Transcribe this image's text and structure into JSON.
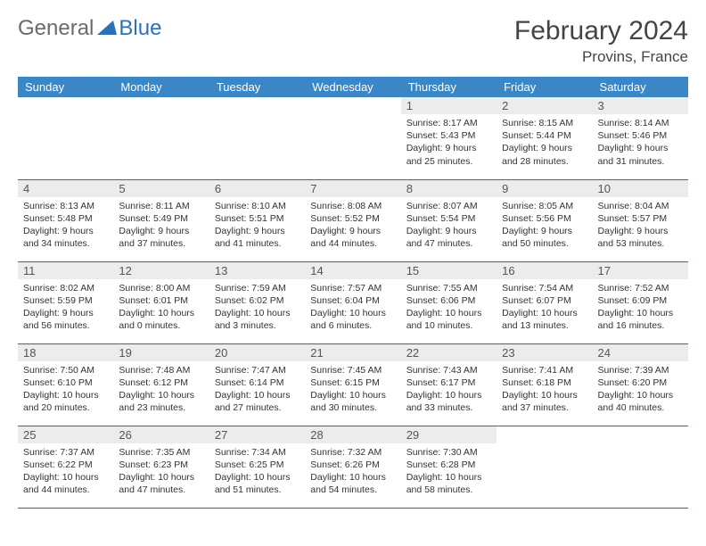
{
  "logo": {
    "text1": "General",
    "text2": "Blue"
  },
  "title": "February 2024",
  "location": "Provins, France",
  "colors": {
    "header_bg": "#3b86c5",
    "header_text": "#ffffff",
    "daynum_bg": "#ececec",
    "border": "#2a6aa8",
    "logo_gray": "#6a6a6a",
    "logo_blue": "#2a71b8"
  },
  "weekdays": [
    "Sunday",
    "Monday",
    "Tuesday",
    "Wednesday",
    "Thursday",
    "Friday",
    "Saturday"
  ],
  "weeks": [
    [
      {
        "n": "",
        "sr": "",
        "ss": "",
        "d1": "",
        "d2": "",
        "empty": true
      },
      {
        "n": "",
        "sr": "",
        "ss": "",
        "d1": "",
        "d2": "",
        "empty": true
      },
      {
        "n": "",
        "sr": "",
        "ss": "",
        "d1": "",
        "d2": "",
        "empty": true
      },
      {
        "n": "",
        "sr": "",
        "ss": "",
        "d1": "",
        "d2": "",
        "empty": true
      },
      {
        "n": "1",
        "sr": "Sunrise: 8:17 AM",
        "ss": "Sunset: 5:43 PM",
        "d1": "Daylight: 9 hours",
        "d2": "and 25 minutes."
      },
      {
        "n": "2",
        "sr": "Sunrise: 8:15 AM",
        "ss": "Sunset: 5:44 PM",
        "d1": "Daylight: 9 hours",
        "d2": "and 28 minutes."
      },
      {
        "n": "3",
        "sr": "Sunrise: 8:14 AM",
        "ss": "Sunset: 5:46 PM",
        "d1": "Daylight: 9 hours",
        "d2": "and 31 minutes."
      }
    ],
    [
      {
        "n": "4",
        "sr": "Sunrise: 8:13 AM",
        "ss": "Sunset: 5:48 PM",
        "d1": "Daylight: 9 hours",
        "d2": "and 34 minutes."
      },
      {
        "n": "5",
        "sr": "Sunrise: 8:11 AM",
        "ss": "Sunset: 5:49 PM",
        "d1": "Daylight: 9 hours",
        "d2": "and 37 minutes."
      },
      {
        "n": "6",
        "sr": "Sunrise: 8:10 AM",
        "ss": "Sunset: 5:51 PM",
        "d1": "Daylight: 9 hours",
        "d2": "and 41 minutes."
      },
      {
        "n": "7",
        "sr": "Sunrise: 8:08 AM",
        "ss": "Sunset: 5:52 PM",
        "d1": "Daylight: 9 hours",
        "d2": "and 44 minutes."
      },
      {
        "n": "8",
        "sr": "Sunrise: 8:07 AM",
        "ss": "Sunset: 5:54 PM",
        "d1": "Daylight: 9 hours",
        "d2": "and 47 minutes."
      },
      {
        "n": "9",
        "sr": "Sunrise: 8:05 AM",
        "ss": "Sunset: 5:56 PM",
        "d1": "Daylight: 9 hours",
        "d2": "and 50 minutes."
      },
      {
        "n": "10",
        "sr": "Sunrise: 8:04 AM",
        "ss": "Sunset: 5:57 PM",
        "d1": "Daylight: 9 hours",
        "d2": "and 53 minutes."
      }
    ],
    [
      {
        "n": "11",
        "sr": "Sunrise: 8:02 AM",
        "ss": "Sunset: 5:59 PM",
        "d1": "Daylight: 9 hours",
        "d2": "and 56 minutes."
      },
      {
        "n": "12",
        "sr": "Sunrise: 8:00 AM",
        "ss": "Sunset: 6:01 PM",
        "d1": "Daylight: 10 hours",
        "d2": "and 0 minutes."
      },
      {
        "n": "13",
        "sr": "Sunrise: 7:59 AM",
        "ss": "Sunset: 6:02 PM",
        "d1": "Daylight: 10 hours",
        "d2": "and 3 minutes."
      },
      {
        "n": "14",
        "sr": "Sunrise: 7:57 AM",
        "ss": "Sunset: 6:04 PM",
        "d1": "Daylight: 10 hours",
        "d2": "and 6 minutes."
      },
      {
        "n": "15",
        "sr": "Sunrise: 7:55 AM",
        "ss": "Sunset: 6:06 PM",
        "d1": "Daylight: 10 hours",
        "d2": "and 10 minutes."
      },
      {
        "n": "16",
        "sr": "Sunrise: 7:54 AM",
        "ss": "Sunset: 6:07 PM",
        "d1": "Daylight: 10 hours",
        "d2": "and 13 minutes."
      },
      {
        "n": "17",
        "sr": "Sunrise: 7:52 AM",
        "ss": "Sunset: 6:09 PM",
        "d1": "Daylight: 10 hours",
        "d2": "and 16 minutes."
      }
    ],
    [
      {
        "n": "18",
        "sr": "Sunrise: 7:50 AM",
        "ss": "Sunset: 6:10 PM",
        "d1": "Daylight: 10 hours",
        "d2": "and 20 minutes."
      },
      {
        "n": "19",
        "sr": "Sunrise: 7:48 AM",
        "ss": "Sunset: 6:12 PM",
        "d1": "Daylight: 10 hours",
        "d2": "and 23 minutes."
      },
      {
        "n": "20",
        "sr": "Sunrise: 7:47 AM",
        "ss": "Sunset: 6:14 PM",
        "d1": "Daylight: 10 hours",
        "d2": "and 27 minutes."
      },
      {
        "n": "21",
        "sr": "Sunrise: 7:45 AM",
        "ss": "Sunset: 6:15 PM",
        "d1": "Daylight: 10 hours",
        "d2": "and 30 minutes."
      },
      {
        "n": "22",
        "sr": "Sunrise: 7:43 AM",
        "ss": "Sunset: 6:17 PM",
        "d1": "Daylight: 10 hours",
        "d2": "and 33 minutes."
      },
      {
        "n": "23",
        "sr": "Sunrise: 7:41 AM",
        "ss": "Sunset: 6:18 PM",
        "d1": "Daylight: 10 hours",
        "d2": "and 37 minutes."
      },
      {
        "n": "24",
        "sr": "Sunrise: 7:39 AM",
        "ss": "Sunset: 6:20 PM",
        "d1": "Daylight: 10 hours",
        "d2": "and 40 minutes."
      }
    ],
    [
      {
        "n": "25",
        "sr": "Sunrise: 7:37 AM",
        "ss": "Sunset: 6:22 PM",
        "d1": "Daylight: 10 hours",
        "d2": "and 44 minutes."
      },
      {
        "n": "26",
        "sr": "Sunrise: 7:35 AM",
        "ss": "Sunset: 6:23 PM",
        "d1": "Daylight: 10 hours",
        "d2": "and 47 minutes."
      },
      {
        "n": "27",
        "sr": "Sunrise: 7:34 AM",
        "ss": "Sunset: 6:25 PM",
        "d1": "Daylight: 10 hours",
        "d2": "and 51 minutes."
      },
      {
        "n": "28",
        "sr": "Sunrise: 7:32 AM",
        "ss": "Sunset: 6:26 PM",
        "d1": "Daylight: 10 hours",
        "d2": "and 54 minutes."
      },
      {
        "n": "29",
        "sr": "Sunrise: 7:30 AM",
        "ss": "Sunset: 6:28 PM",
        "d1": "Daylight: 10 hours",
        "d2": "and 58 minutes."
      },
      {
        "n": "",
        "sr": "",
        "ss": "",
        "d1": "",
        "d2": "",
        "empty": true
      },
      {
        "n": "",
        "sr": "",
        "ss": "",
        "d1": "",
        "d2": "",
        "empty": true
      }
    ]
  ]
}
